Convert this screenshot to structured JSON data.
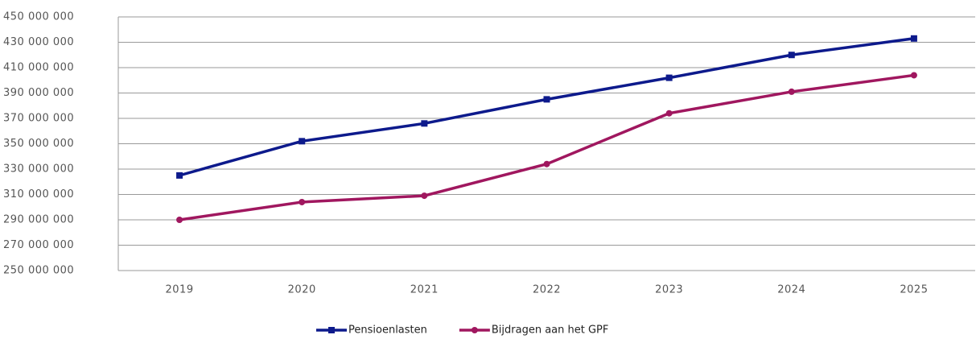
{
  "chart_data": {
    "type": "line",
    "categories": [
      "2019",
      "2020",
      "2021",
      "2022",
      "2023",
      "2024",
      "2025"
    ],
    "series": [
      {
        "name": "Pensioenlasten",
        "color": "#0d1a8c",
        "marker": "square",
        "values": [
          325000000,
          352000000,
          366000000,
          385000000,
          402000000,
          420000000,
          433000000
        ]
      },
      {
        "name": "Bijdragen aan het GPF",
        "color": "#a0175f",
        "marker": "circle",
        "values": [
          290000000,
          304000000,
          309000000,
          334000000,
          374000000,
          391000000,
          404000000
        ]
      }
    ],
    "ylim": [
      250000000,
      450000000
    ],
    "yticks": [
      {
        "value": 250000000,
        "label": "250 000 000"
      },
      {
        "value": 270000000,
        "label": "270 000 000"
      },
      {
        "value": 290000000,
        "label": "290 000 000"
      },
      {
        "value": 310000000,
        "label": "310 000 000"
      },
      {
        "value": 330000000,
        "label": "330 000 000"
      },
      {
        "value": 350000000,
        "label": "350 000 000"
      },
      {
        "value": 370000000,
        "label": "370 000 000"
      },
      {
        "value": 390000000,
        "label": "390 000 000"
      },
      {
        "value": 410000000,
        "label": "410 000 000"
      },
      {
        "value": 430000000,
        "label": "430 000 000"
      },
      {
        "value": 450000000,
        "label": "450 000 000"
      }
    ],
    "grid": true,
    "legend": "bottom"
  }
}
